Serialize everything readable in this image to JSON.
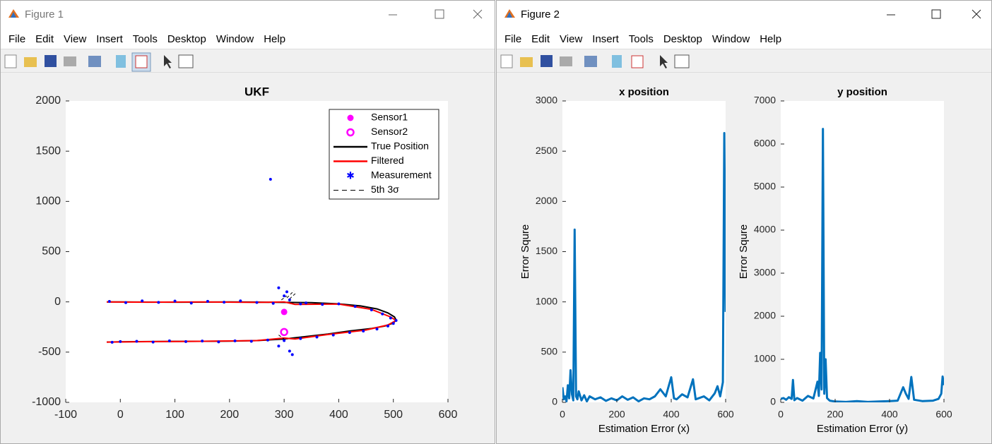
{
  "windows": [
    {
      "title": "Figure 1",
      "menu": [
        "File",
        "Edit",
        "View",
        "Insert",
        "Tools",
        "Desktop",
        "Window",
        "Help"
      ]
    },
    {
      "title": "Figure 2",
      "menu": [
        "File",
        "Edit",
        "View",
        "Insert",
        "Tools",
        "Desktop",
        "Window",
        "Help"
      ]
    }
  ],
  "chart_data": [
    {
      "type": "scatter",
      "title": "UKF",
      "xlim": [
        -100,
        600
      ],
      "xticks": [
        -100,
        0,
        100,
        200,
        300,
        400,
        500,
        600
      ],
      "ylim": [
        -1000,
        2000
      ],
      "yticks": [
        -1000,
        -500,
        0,
        500,
        1000,
        1500,
        2000
      ],
      "legend": "upper right",
      "series": [
        {
          "name": "Sensor1",
          "color": "#ff00ff",
          "marker": "filled-circle",
          "x": [
            300
          ],
          "values": [
            -100
          ]
        },
        {
          "name": "Sensor2",
          "color": "#ff00ff",
          "marker": "open-circle",
          "x": [
            300
          ],
          "values": [
            -300
          ]
        },
        {
          "name": "True Position",
          "color": "#000000",
          "line": "solid",
          "x": [
            -25,
            0,
            50,
            100,
            150,
            200,
            250,
            300,
            350,
            400,
            440,
            470,
            490,
            502,
            505,
            500,
            485,
            460,
            420,
            380,
            340,
            300,
            250,
            200,
            150,
            100,
            50,
            0,
            -25
          ],
          "values": [
            0,
            0,
            -2,
            -3,
            -2,
            0,
            -2,
            -5,
            -8,
            -20,
            -40,
            -70,
            -110,
            -150,
            -180,
            -210,
            -240,
            -265,
            -290,
            -320,
            -345,
            -370,
            -385,
            -390,
            -392,
            -393,
            -395,
            -398,
            -400
          ]
        },
        {
          "name": "Filtered",
          "color": "#ff0000",
          "line": "solid",
          "x": [
            -25,
            50,
            150,
            250,
            300,
            320,
            400,
            460,
            495,
            505,
            490,
            450,
            380,
            320,
            300,
            250,
            150,
            50,
            -25
          ],
          "values": [
            0,
            -3,
            0,
            -5,
            0,
            -25,
            -22,
            -75,
            -150,
            -185,
            -230,
            -280,
            -325,
            -370,
            -360,
            -385,
            -392,
            -396,
            -400
          ]
        },
        {
          "name": "Measurement",
          "color": "#0000ff",
          "marker": "dot",
          "x": [
            -20,
            10,
            40,
            70,
            100,
            130,
            160,
            190,
            220,
            250,
            280,
            310,
            340,
            370,
            400,
            430,
            460,
            480,
            495,
            505,
            500,
            490,
            470,
            445,
            420,
            390,
            360,
            330,
            300,
            270,
            240,
            210,
            180,
            150,
            120,
            90,
            60,
            30,
            0,
            -15,
            275,
            290,
            310,
            315,
            300,
            305,
            330,
            290
          ],
          "values": [
            5,
            -8,
            10,
            -5,
            8,
            -12,
            6,
            -3,
            10,
            -6,
            -15,
            20,
            -10,
            -25,
            -20,
            -45,
            -80,
            -120,
            -160,
            -185,
            -215,
            -240,
            -270,
            -290,
            -305,
            -330,
            -350,
            -365,
            -385,
            -380,
            -392,
            -388,
            -398,
            -390,
            -395,
            -388,
            -400,
            -392,
            -395,
            -402,
            1220,
            140,
            -490,
            -525,
            60,
            100,
            -20,
            -440
          ]
        },
        {
          "name": "5th 3σ",
          "color": "#000000",
          "line": "dashed",
          "x": [
            295,
            305,
            null,
            305,
            318,
            null,
            310,
            322,
            null,
            290,
            300
          ],
          "values": [
            20,
            60,
            null,
            40,
            110,
            null,
            30,
            90,
            null,
            -330,
            -370
          ]
        }
      ]
    },
    {
      "type": "line",
      "title": "x position",
      "x_label": "Estimation Error (x)",
      "y_label": "Error Squre",
      "xlim": [
        0,
        600
      ],
      "xticks": [
        0,
        200,
        400,
        600
      ],
      "ylim": [
        0,
        3000
      ],
      "yticks": [
        0,
        500,
        1000,
        1500,
        2000,
        2500,
        3000
      ],
      "x": [
        0,
        5,
        10,
        15,
        20,
        25,
        30,
        35,
        40,
        45,
        50,
        55,
        60,
        70,
        80,
        90,
        100,
        120,
        140,
        160,
        180,
        200,
        220,
        240,
        260,
        280,
        300,
        320,
        340,
        360,
        380,
        400,
        410,
        420,
        440,
        460,
        480,
        490,
        500,
        520,
        540,
        560,
        570,
        580,
        590,
        595,
        600
      ],
      "series": [
        {
          "color": "#0072bd",
          "values": [
            150,
            30,
            60,
            10,
            170,
            40,
            320,
            80,
            20,
            1720,
            60,
            30,
            110,
            20,
            70,
            10,
            60,
            30,
            50,
            15,
            40,
            20,
            60,
            25,
            50,
            10,
            40,
            30,
            60,
            130,
            60,
            250,
            40,
            30,
            80,
            50,
            230,
            30,
            40,
            60,
            20,
            90,
            160,
            60,
            200,
            2680,
            900
          ]
        }
      ]
    },
    {
      "type": "line",
      "title": "y position",
      "x_label": "Estimation Error (y)",
      "y_label": "Error Squre",
      "xlim": [
        0,
        600
      ],
      "xticks": [
        0,
        200,
        400,
        600
      ],
      "ylim": [
        0,
        7000
      ],
      "yticks": [
        0,
        1000,
        2000,
        3000,
        4000,
        5000,
        6000,
        7000
      ],
      "x": [
        0,
        10,
        20,
        30,
        40,
        45,
        50,
        60,
        80,
        100,
        120,
        135,
        140,
        145,
        150,
        155,
        160,
        165,
        170,
        180,
        200,
        240,
        280,
        320,
        360,
        400,
        430,
        450,
        460,
        470,
        480,
        490,
        520,
        560,
        580,
        590,
        595,
        600
      ],
      "series": [
        {
          "color": "#0072bd",
          "values": [
            80,
            100,
            60,
            120,
            80,
            520,
            50,
            100,
            40,
            150,
            90,
            480,
            150,
            1150,
            300,
            6350,
            200,
            1000,
            100,
            40,
            20,
            10,
            30,
            10,
            20,
            30,
            40,
            350,
            200,
            80,
            590,
            60,
            30,
            40,
            80,
            200,
            600,
            400
          ]
        }
      ]
    }
  ]
}
